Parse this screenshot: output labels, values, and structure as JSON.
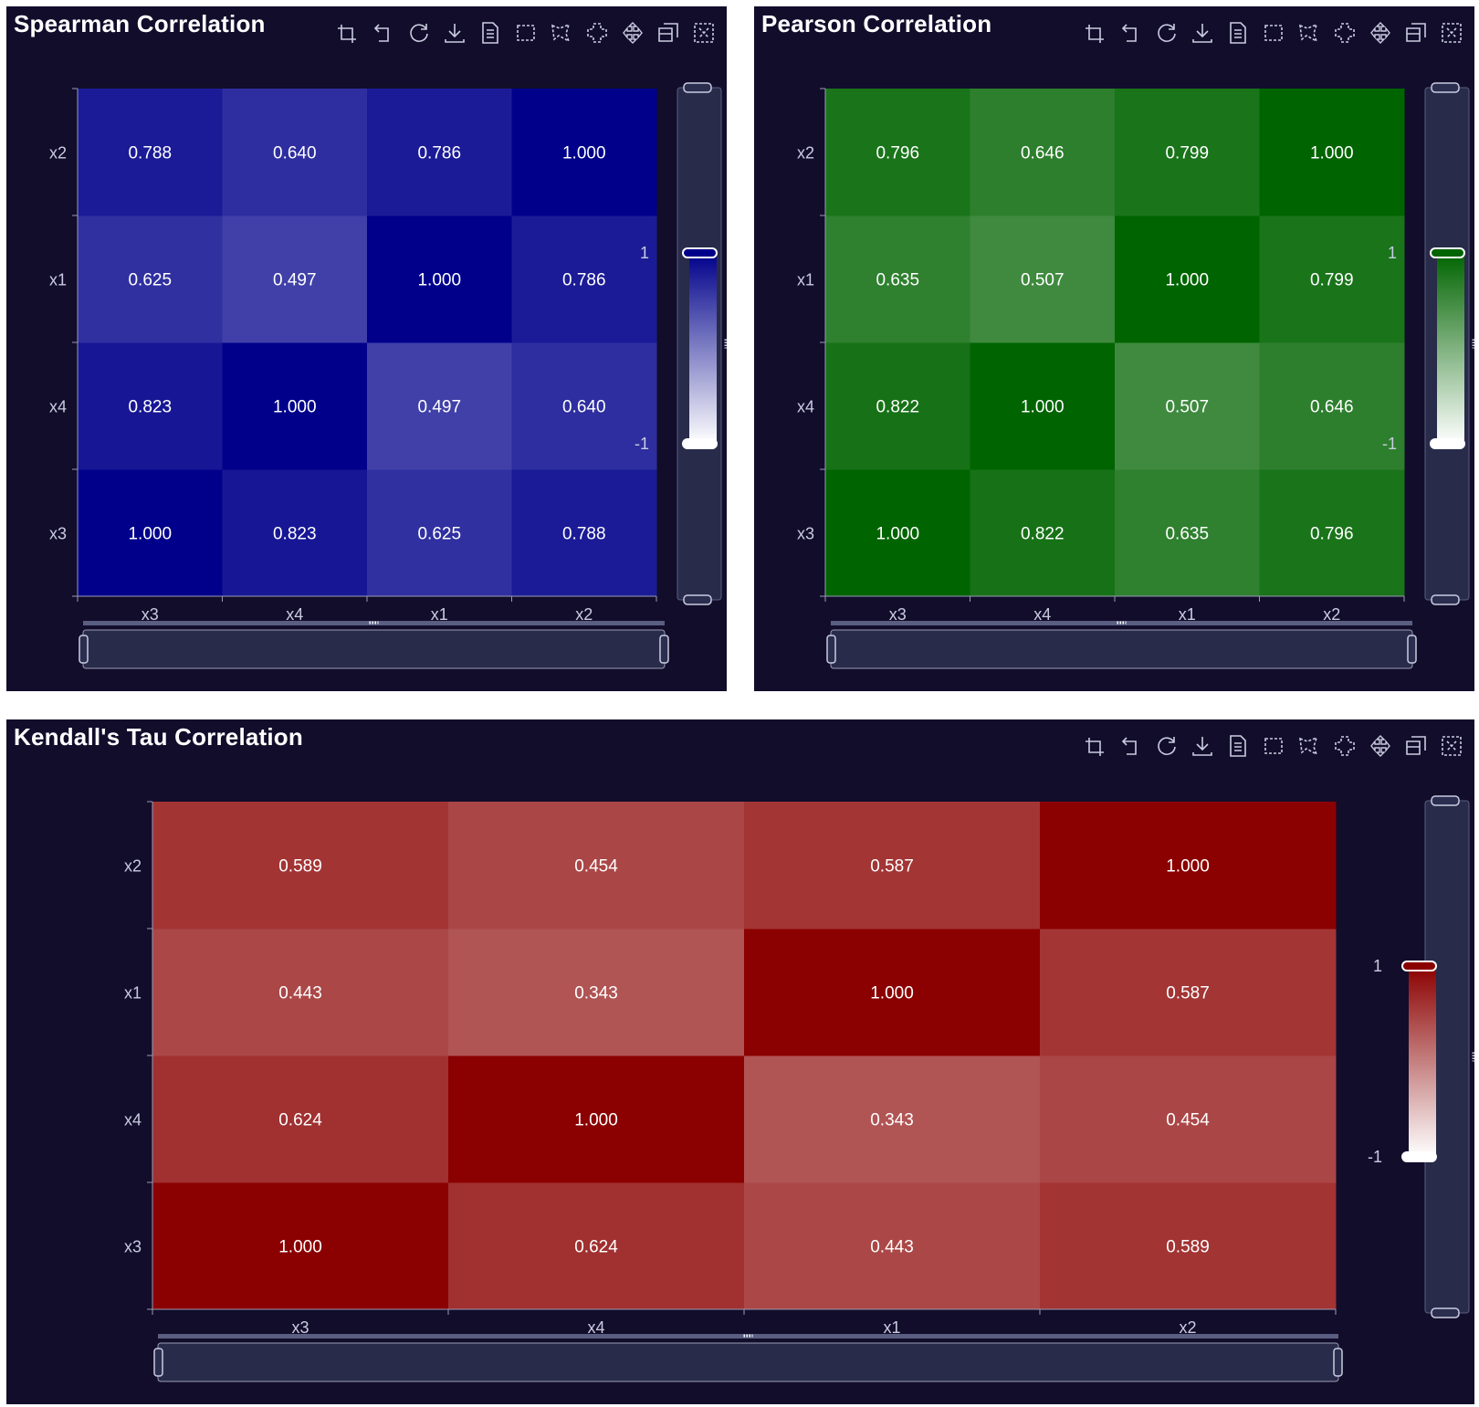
{
  "toolbox": [
    {
      "name": "zoom-in-icon"
    },
    {
      "name": "zoom-reset-icon"
    },
    {
      "name": "refresh-icon"
    },
    {
      "name": "download-icon"
    },
    {
      "name": "data-view-icon"
    },
    {
      "name": "rect-select-icon"
    },
    {
      "name": "polygon-select-icon"
    },
    {
      "name": "keep-selection-icon"
    },
    {
      "name": "clear-selection-icon"
    },
    {
      "name": "restore-icon"
    },
    {
      "name": "close-icon"
    }
  ],
  "chart_data": [
    {
      "id": "spearman",
      "type": "heatmap",
      "title": "Spearman Correlation",
      "x_categories": [
        "x3",
        "x4",
        "x1",
        "x2"
      ],
      "y_categories": [
        "x3",
        "x4",
        "x1",
        "x2"
      ],
      "matrix": [
        [
          1.0,
          0.823,
          0.625,
          0.788
        ],
        [
          0.823,
          1.0,
          0.497,
          0.64
        ],
        [
          0.625,
          0.497,
          1.0,
          0.786
        ],
        [
          0.788,
          0.64,
          0.786,
          1.0
        ]
      ],
      "color_max": "#00008b",
      "color_min": "#ffffff",
      "visual_map": {
        "max_label": "1",
        "min_label": "-1",
        "max": 1,
        "min": -1
      }
    },
    {
      "id": "pearson",
      "type": "heatmap",
      "title": "Pearson Correlation",
      "x_categories": [
        "x3",
        "x4",
        "x1",
        "x2"
      ],
      "y_categories": [
        "x3",
        "x4",
        "x1",
        "x2"
      ],
      "matrix": [
        [
          1.0,
          0.822,
          0.635,
          0.796
        ],
        [
          0.822,
          1.0,
          0.507,
          0.646
        ],
        [
          0.635,
          0.507,
          1.0,
          0.799
        ],
        [
          0.796,
          0.646,
          0.799,
          1.0
        ]
      ],
      "color_max": "#006400",
      "color_min": "#ffffff",
      "visual_map": {
        "max_label": "1",
        "min_label": "-1",
        "max": 1,
        "min": -1
      }
    },
    {
      "id": "kendall",
      "type": "heatmap",
      "title": "Kendall's Tau Correlation",
      "x_categories": [
        "x3",
        "x4",
        "x1",
        "x2"
      ],
      "y_categories": [
        "x3",
        "x4",
        "x1",
        "x2"
      ],
      "matrix": [
        [
          1.0,
          0.624,
          0.443,
          0.589
        ],
        [
          0.624,
          1.0,
          0.343,
          0.454
        ],
        [
          0.443,
          0.343,
          1.0,
          0.587
        ],
        [
          0.589,
          0.454,
          0.587,
          1.0
        ]
      ],
      "color_max": "#8b0000",
      "color_min": "#ffffff",
      "visual_map": {
        "max_label": "1",
        "min_label": "-1",
        "max": 1,
        "min": -1
      }
    }
  ]
}
